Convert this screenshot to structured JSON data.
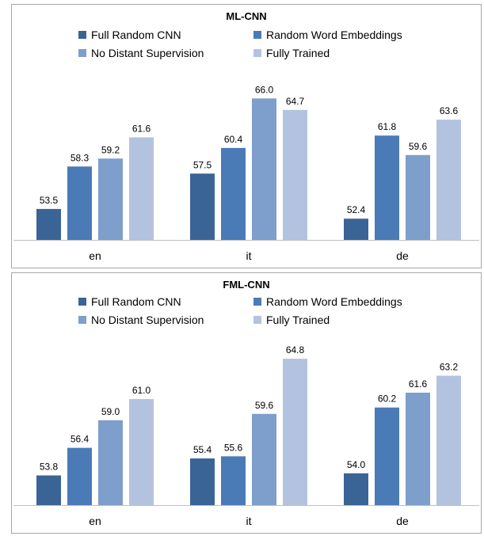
{
  "chart_data": [
    {
      "type": "bar",
      "title": "ML-CNN",
      "categories": [
        "en",
        "it",
        "de"
      ],
      "series": [
        {
          "name": "Full Random CNN",
          "color": "#3b6496",
          "values": [
            53.5,
            57.5,
            52.4
          ]
        },
        {
          "name": "Random Word Embeddings",
          "color": "#4a7bb7",
          "values": [
            58.3,
            60.4,
            61.8
          ]
        },
        {
          "name": "No Distant Supervision",
          "color": "#7e9ecb",
          "values": [
            59.2,
            66.0,
            59.6
          ]
        },
        {
          "name": "Fully Trained",
          "color": "#b3c3df",
          "values": [
            61.6,
            64.7,
            63.6
          ]
        }
      ],
      "value_labels": [
        [
          "53.5",
          "58.3",
          "59.2",
          "61.6"
        ],
        [
          "57.5",
          "60.4",
          "66.0",
          "64.7"
        ],
        [
          "52.4",
          "61.8",
          "59.6",
          "63.6"
        ]
      ],
      "ylim": [
        50,
        68
      ],
      "grid": false,
      "legend_position": "top"
    },
    {
      "type": "bar",
      "title": "FML-CNN",
      "categories": [
        "en",
        "it",
        "de"
      ],
      "series": [
        {
          "name": "Full Random CNN",
          "color": "#3b6496",
          "values": [
            53.8,
            55.4,
            54.0
          ]
        },
        {
          "name": "Random Word Embeddings",
          "color": "#4a7bb7",
          "values": [
            56.4,
            55.6,
            60.2
          ]
        },
        {
          "name": "No Distant Supervision",
          "color": "#7e9ecb",
          "values": [
            59.0,
            59.6,
            61.6
          ]
        },
        {
          "name": "Fully Trained",
          "color": "#b3c3df",
          "values": [
            61.0,
            64.8,
            63.2
          ]
        }
      ],
      "value_labels": [
        [
          "53.8",
          "56.4",
          "59.0",
          "61.0"
        ],
        [
          "55.4",
          "55.6",
          "59.6",
          "64.8"
        ],
        [
          "54.0",
          "60.2",
          "61.6",
          "63.2"
        ]
      ],
      "ylim": [
        51,
        66
      ],
      "grid": false,
      "legend_position": "top"
    }
  ]
}
